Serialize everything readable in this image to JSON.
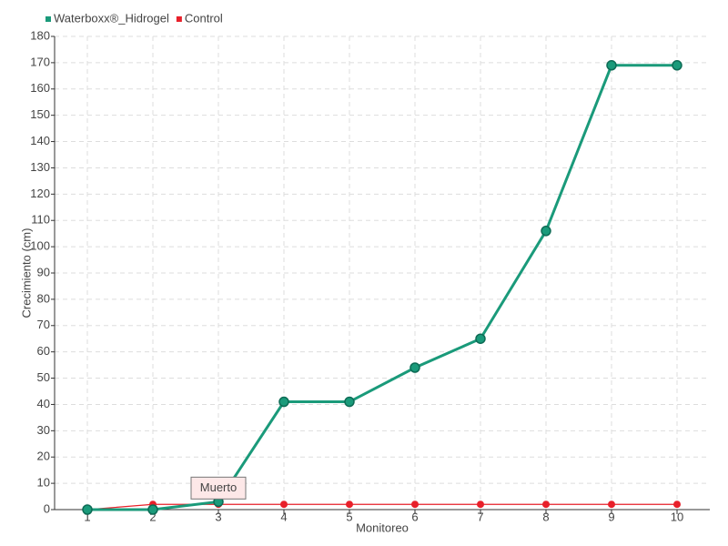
{
  "chart_data": {
    "type": "line",
    "x_label": "Monitoreo",
    "y_label": "Crecimiento (cm)",
    "categories": [
      "1",
      "2",
      "3",
      "4",
      "5",
      "6",
      "7",
      "8",
      "9",
      "10"
    ],
    "series": [
      {
        "name": "Waterboxx®_Hidrogel",
        "color": "#1a9a7a",
        "values": [
          0,
          0,
          3,
          41,
          41,
          54,
          65,
          106,
          169,
          169
        ]
      },
      {
        "name": "Control",
        "color": "#e8202a",
        "values": [
          0,
          2,
          2,
          2,
          2,
          2,
          2,
          2,
          2,
          2
        ]
      }
    ],
    "annotation": "Muerto",
    "ylim": [
      0,
      180
    ],
    "yticks": [
      0,
      10,
      20,
      30,
      40,
      50,
      60,
      70,
      80,
      90,
      100,
      110,
      120,
      130,
      140,
      150,
      160,
      170,
      180
    ],
    "grid": true,
    "legend": "top-left"
  }
}
